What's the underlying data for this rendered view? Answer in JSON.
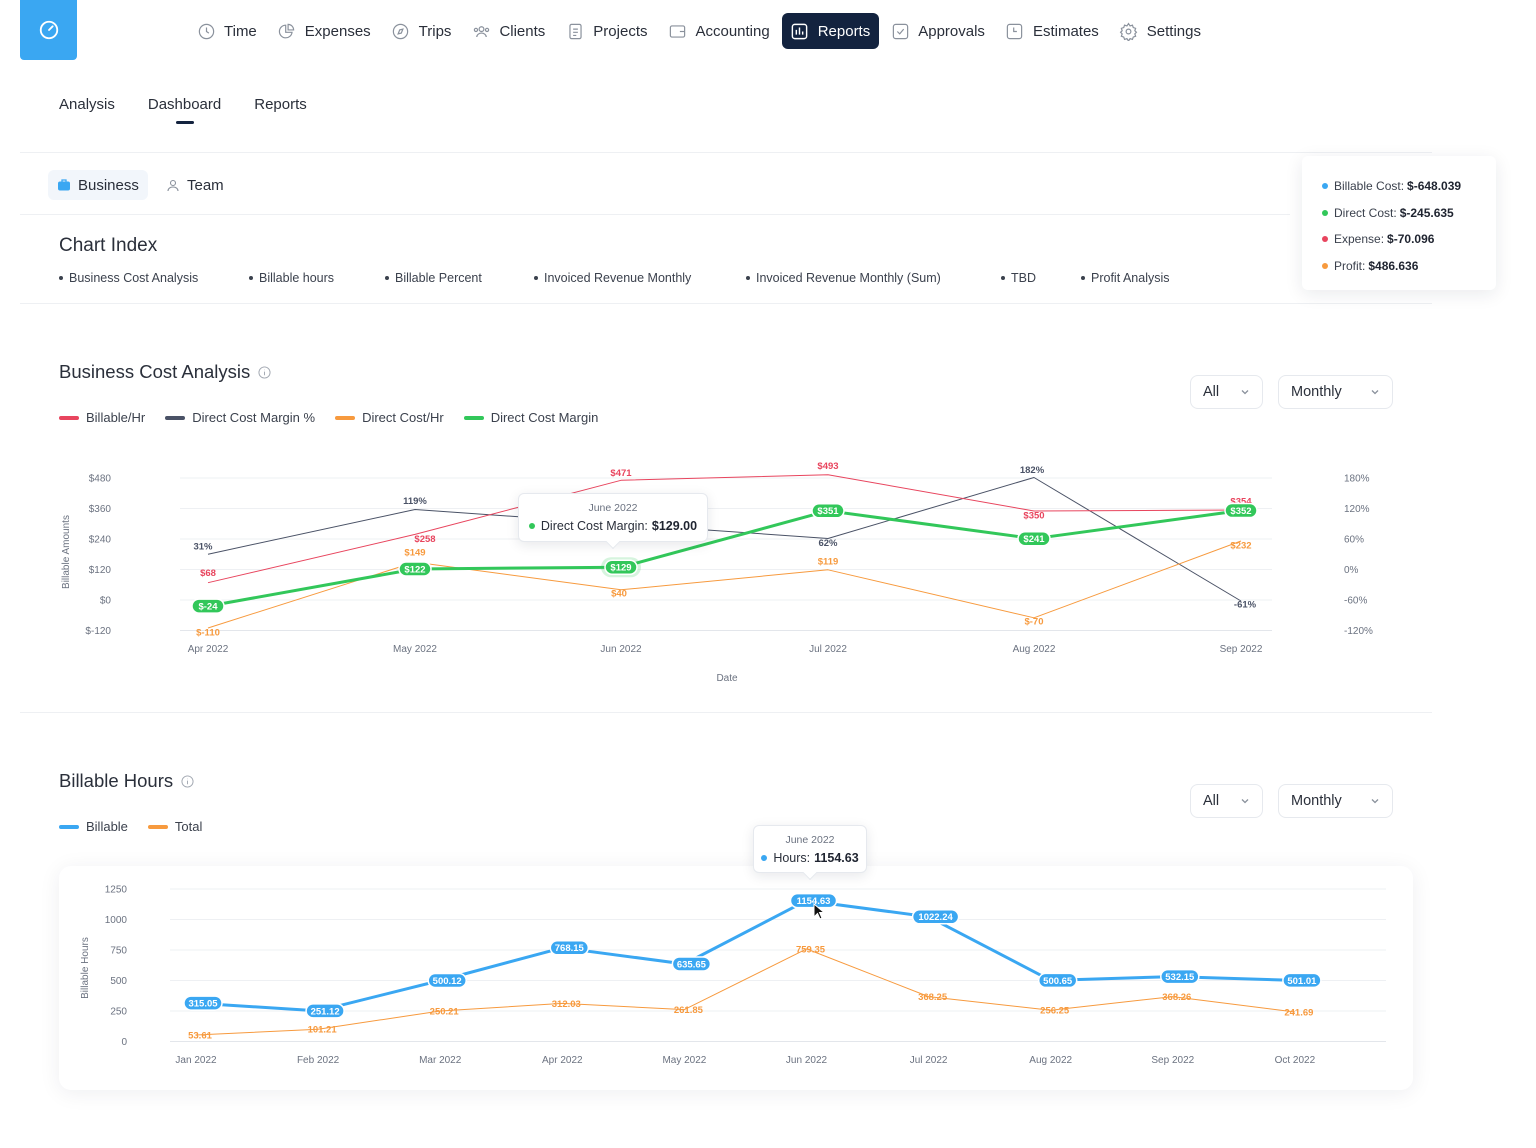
{
  "nav": {
    "items": [
      {
        "label": "Time",
        "icon": "clock-icon"
      },
      {
        "label": "Expenses",
        "icon": "pie-chart-icon"
      },
      {
        "label": "Trips",
        "icon": "compass-icon"
      },
      {
        "label": "Clients",
        "icon": "users-icon"
      },
      {
        "label": "Projects",
        "icon": "document-icon"
      },
      {
        "label": "Accounting",
        "icon": "wallet-icon"
      },
      {
        "label": "Reports",
        "icon": "bar-chart-icon"
      },
      {
        "label": "Approvals",
        "icon": "check-square-icon"
      },
      {
        "label": "Estimates",
        "icon": "estimate-icon"
      },
      {
        "label": "Settings",
        "icon": "gear-icon"
      }
    ],
    "active": "Reports",
    "active_color": "#13233f",
    "logo_color": "#3aa7f2"
  },
  "subtabs": [
    "Analysis",
    "Dashboard",
    "Reports"
  ],
  "segment": {
    "business": "Business",
    "team": "Team"
  },
  "chart_index": {
    "title": "Chart Index",
    "items": [
      "Business Cost Analysis",
      "Billable hours",
      "Billable Percent",
      "Invoiced Revenue Monthly",
      "Invoiced Revenue Monthly (Sum)",
      "TBD",
      "Profit Analysis"
    ]
  },
  "summary": [
    {
      "label": "Billable Cost:",
      "value": "$-648.039",
      "color": "#3aa7f2"
    },
    {
      "label": "Direct Cost:",
      "value": "$-245.635",
      "color": "#32c75a"
    },
    {
      "label": "Expense:",
      "value": "$-70.096",
      "color": "#e8455e"
    },
    {
      "label": "Profit:",
      "value": "$486.636",
      "color": "#f79a3e"
    }
  ],
  "sections": {
    "cost": {
      "title": "Business Cost Analysis",
      "filter": "All",
      "period": "Monthly"
    },
    "hours": {
      "title": "Billable Hours",
      "filter": "All",
      "period": "Monthly"
    }
  },
  "tooltips": {
    "cost": {
      "date": "June 2022",
      "label": "Direct Cost Margin:",
      "value": "$129.00"
    },
    "hours": {
      "date": "June 2022",
      "label": "Hours:",
      "value": "1154.63"
    }
  },
  "chart_data": [
    {
      "type": "line",
      "title": "Business Cost Analysis",
      "xlabel": "Date",
      "ylabel": "Billable Amounts",
      "categories": [
        "Apr 2022",
        "May 2022",
        "Jun 2022",
        "Jul 2022",
        "Aug 2022",
        "Sep 2022"
      ],
      "y_ticks": [
        "$480",
        "$360",
        "$240",
        "$120",
        "$0",
        "$-120"
      ],
      "y2_ticks": [
        "180%",
        "120%",
        "60%",
        "0%",
        "-60%",
        "-120%"
      ],
      "ylim": [
        -120,
        480
      ],
      "y2lim": [
        -120,
        180
      ],
      "grid": true,
      "series": [
        {
          "name": "Billable/Hr",
          "color": "#e8455e",
          "axis": "left",
          "style": "thin",
          "values": [
            68,
            258,
            471,
            493,
            350,
            354
          ],
          "labels": [
            "$68",
            "$258",
            "$471",
            "$493",
            "$350",
            "$354"
          ]
        },
        {
          "name": "Direct Cost Margin %",
          "color": "#4a5266",
          "axis": "right",
          "style": "thin",
          "values": [
            31,
            119,
            null,
            62,
            182,
            -61
          ],
          "labels": [
            "31%",
            "119%",
            "",
            "62%",
            "182%",
            "-61%"
          ]
        },
        {
          "name": "Direct Cost/Hr",
          "color": "#f79a3e",
          "axis": "left",
          "style": "thin",
          "values": [
            -110,
            149,
            40,
            119,
            -70,
            232
          ],
          "labels": [
            "$-110",
            "$149",
            "$40",
            "$119",
            "$-70",
            "$232"
          ]
        },
        {
          "name": "Direct Cost Margin",
          "color": "#32c75a",
          "axis": "left",
          "style": "thick",
          "values": [
            -24,
            122,
            129,
            351,
            241,
            352
          ],
          "labels": [
            "$-24",
            "$122",
            "$129",
            "$351",
            "$241",
            "$352"
          ]
        }
      ]
    },
    {
      "type": "line",
      "title": "Billable Hours",
      "ylabel": "Billable Hours",
      "categories": [
        "Jan 2022",
        "Feb 2022",
        "Mar 2022",
        "Apr 2022",
        "May 2022",
        "Jun 2022",
        "Jul 2022",
        "Aug 2022",
        "Sep 2022",
        "Oct 2022"
      ],
      "y_ticks": [
        "1250",
        "1000",
        "750",
        "500",
        "250",
        "0"
      ],
      "ylim": [
        0,
        1250
      ],
      "grid": true,
      "series": [
        {
          "name": "Billable",
          "color": "#3aa7f2",
          "style": "thick",
          "values": [
            315.05,
            251.12,
            500.12,
            768.15,
            635.65,
            1154.63,
            1022.24,
            500.65,
            532.15,
            501.01
          ],
          "labels": [
            "315.05",
            "251.12",
            "500.12",
            "768.15",
            "635.65",
            "1154.63",
            "1022.24",
            "500.65",
            "532.15",
            "501.01"
          ]
        },
        {
          "name": "Total",
          "color": "#f79a3e",
          "style": "thin",
          "values": [
            53.61,
            101.21,
            250.21,
            312.03,
            261.85,
            759.35,
            368.25,
            256.25,
            368.26,
            241.69
          ],
          "labels": [
            "53.61",
            "101.21",
            "250.21",
            "312.03",
            "261.85",
            "759.35",
            "368.25",
            "256.25",
            "368.26",
            "241.69"
          ]
        }
      ]
    }
  ]
}
